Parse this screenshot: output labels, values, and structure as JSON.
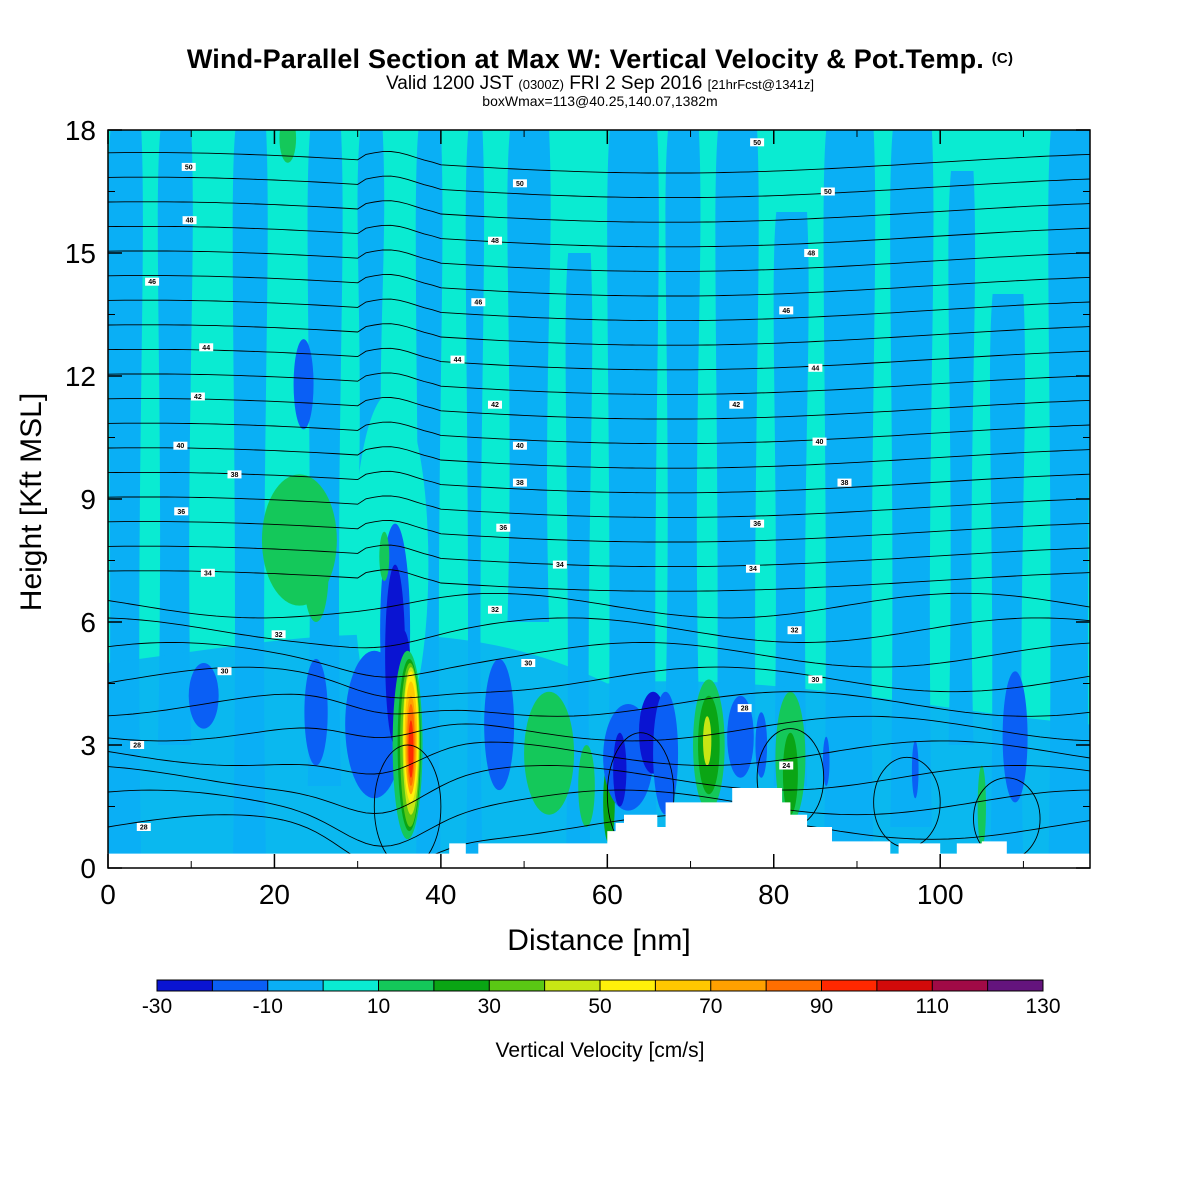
{
  "title": {
    "main": "Wind-Parallel Section at Max W: Vertical Velocity & Pot.Temp.",
    "main_suffix": "(C)",
    "valid_prefix": "Valid 1200 JST",
    "valid_utc": "(0300Z)",
    "valid_date": "FRI 2 Sep 2016",
    "valid_fcst": "[21hrFcst@1341z]",
    "boxinfo": "boxWmax=113@40.25,140.07,1382m"
  },
  "colors": {
    "levels": [
      "#0a14d2",
      "#0a5ff5",
      "#0aaff5",
      "#0aebd2",
      "#14c85a",
      "#0aa514",
      "#5ac814",
      "#c8e614",
      "#fff00a",
      "#ffc800",
      "#ffa000",
      "#ff6e00",
      "#ff2800",
      "#d20a0a",
      "#a00a46",
      "#64147d"
    ],
    "background": "#0aebd2",
    "contour": "#000000",
    "terrain": "#ffffff"
  },
  "chart_data": {
    "type": "heatmap",
    "xlabel": "Distance [nm]",
    "ylabel": "Height [Kft MSL]",
    "xlim": [
      0,
      118
    ],
    "ylim": [
      0,
      18
    ],
    "xticks": [
      "0",
      "20",
      "40",
      "60",
      "80",
      "100"
    ],
    "yticks": [
      "0",
      "3",
      "6",
      "9",
      "12",
      "15",
      "18"
    ],
    "colorbar": {
      "label": "Vertical Velocity [cm/s]",
      "tick_labels": [
        "-30",
        "-10",
        "10",
        "30",
        "50",
        "70",
        "90",
        "110",
        "130"
      ],
      "levels_start": -30,
      "levels_step": 10,
      "levels_count": 16
    },
    "contour_field": "Potential temperature [C]",
    "contour_labels": [
      {
        "text": "28",
        "x": 3.5,
        "y": 3.0
      },
      {
        "text": "28",
        "x": 4.3,
        "y": 1.0
      },
      {
        "text": "30",
        "x": 14.0,
        "y": 4.8
      },
      {
        "text": "32",
        "x": 20.5,
        "y": 5.7
      },
      {
        "text": "34",
        "x": 12.0,
        "y": 7.2
      },
      {
        "text": "36",
        "x": 8.8,
        "y": 8.7
      },
      {
        "text": "38",
        "x": 15.2,
        "y": 9.6
      },
      {
        "text": "40",
        "x": 8.7,
        "y": 10.3
      },
      {
        "text": "42",
        "x": 10.8,
        "y": 11.5
      },
      {
        "text": "44",
        "x": 11.8,
        "y": 12.7
      },
      {
        "text": "46",
        "x": 5.3,
        "y": 14.3
      },
      {
        "text": "48",
        "x": 9.8,
        "y": 15.8
      },
      {
        "text": "50",
        "x": 9.7,
        "y": 17.1
      },
      {
        "text": "30",
        "x": 50.5,
        "y": 5.0
      },
      {
        "text": "32",
        "x": 46.5,
        "y": 6.3
      },
      {
        "text": "34",
        "x": 54.3,
        "y": 7.4
      },
      {
        "text": "36",
        "x": 47.5,
        "y": 8.3
      },
      {
        "text": "38",
        "x": 49.5,
        "y": 9.4
      },
      {
        "text": "40",
        "x": 49.5,
        "y": 10.3
      },
      {
        "text": "42",
        "x": 46.5,
        "y": 11.3
      },
      {
        "text": "44",
        "x": 42.0,
        "y": 12.4
      },
      {
        "text": "46",
        "x": 44.5,
        "y": 13.8
      },
      {
        "text": "48",
        "x": 46.5,
        "y": 15.3
      },
      {
        "text": "50",
        "x": 49.5,
        "y": 16.7
      },
      {
        "text": "28",
        "x": 76.5,
        "y": 3.9
      },
      {
        "text": "30",
        "x": 85.0,
        "y": 4.6
      },
      {
        "text": "32",
        "x": 82.5,
        "y": 5.8
      },
      {
        "text": "34",
        "x": 77.5,
        "y": 7.3
      },
      {
        "text": "36",
        "x": 78.0,
        "y": 8.4
      },
      {
        "text": "38",
        "x": 88.5,
        "y": 9.4
      },
      {
        "text": "40",
        "x": 85.5,
        "y": 10.4
      },
      {
        "text": "42",
        "x": 75.5,
        "y": 11.3
      },
      {
        "text": "44",
        "x": 85.0,
        "y": 12.2
      },
      {
        "text": "46",
        "x": 81.5,
        "y": 13.6
      },
      {
        "text": "48",
        "x": 84.5,
        "y": 15.0
      },
      {
        "text": "50",
        "x": 86.5,
        "y": 16.5
      },
      {
        "text": "50",
        "x": 78.0,
        "y": 17.7
      },
      {
        "text": "24",
        "x": 81.5,
        "y": 2.5
      }
    ]
  }
}
